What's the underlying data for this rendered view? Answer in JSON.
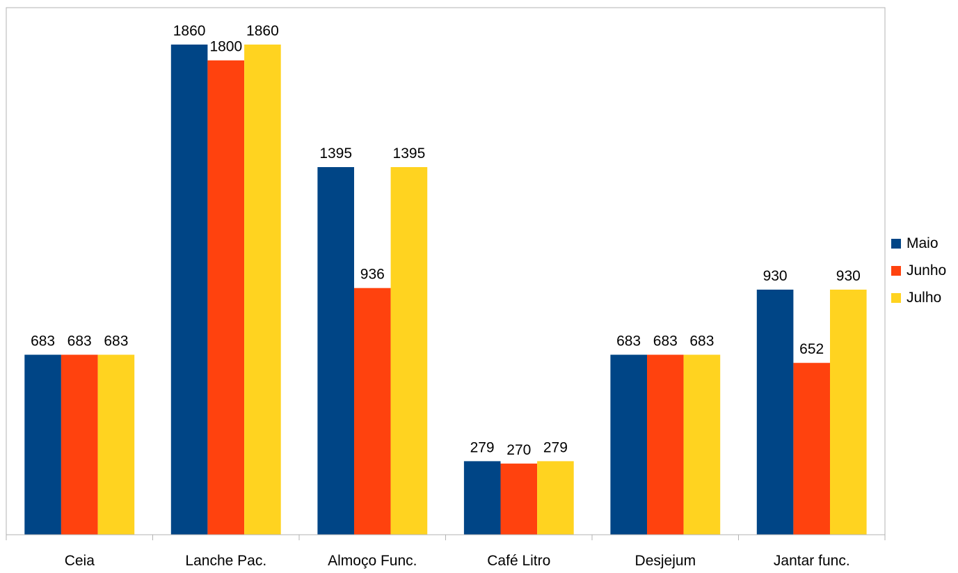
{
  "chart_data": {
    "type": "bar",
    "categories": [
      "Ceia",
      "Lanche Pac.",
      "Almoço Func.",
      "Café Litro",
      "Desjejum",
      "Jantar func."
    ],
    "series": [
      {
        "name": "Maio",
        "color": "#004586",
        "values": [
          683,
          1860,
          1395,
          279,
          683,
          930
        ]
      },
      {
        "name": "Junho",
        "color": "#ff420e",
        "values": [
          683,
          1800,
          936,
          270,
          683,
          652
        ]
      },
      {
        "name": "Julho",
        "color": "#ffd320",
        "values": [
          683,
          1860,
          1395,
          279,
          683,
          930
        ]
      }
    ],
    "ylim": [
      0,
      2000
    ],
    "grid": false,
    "legend_position": "right"
  }
}
